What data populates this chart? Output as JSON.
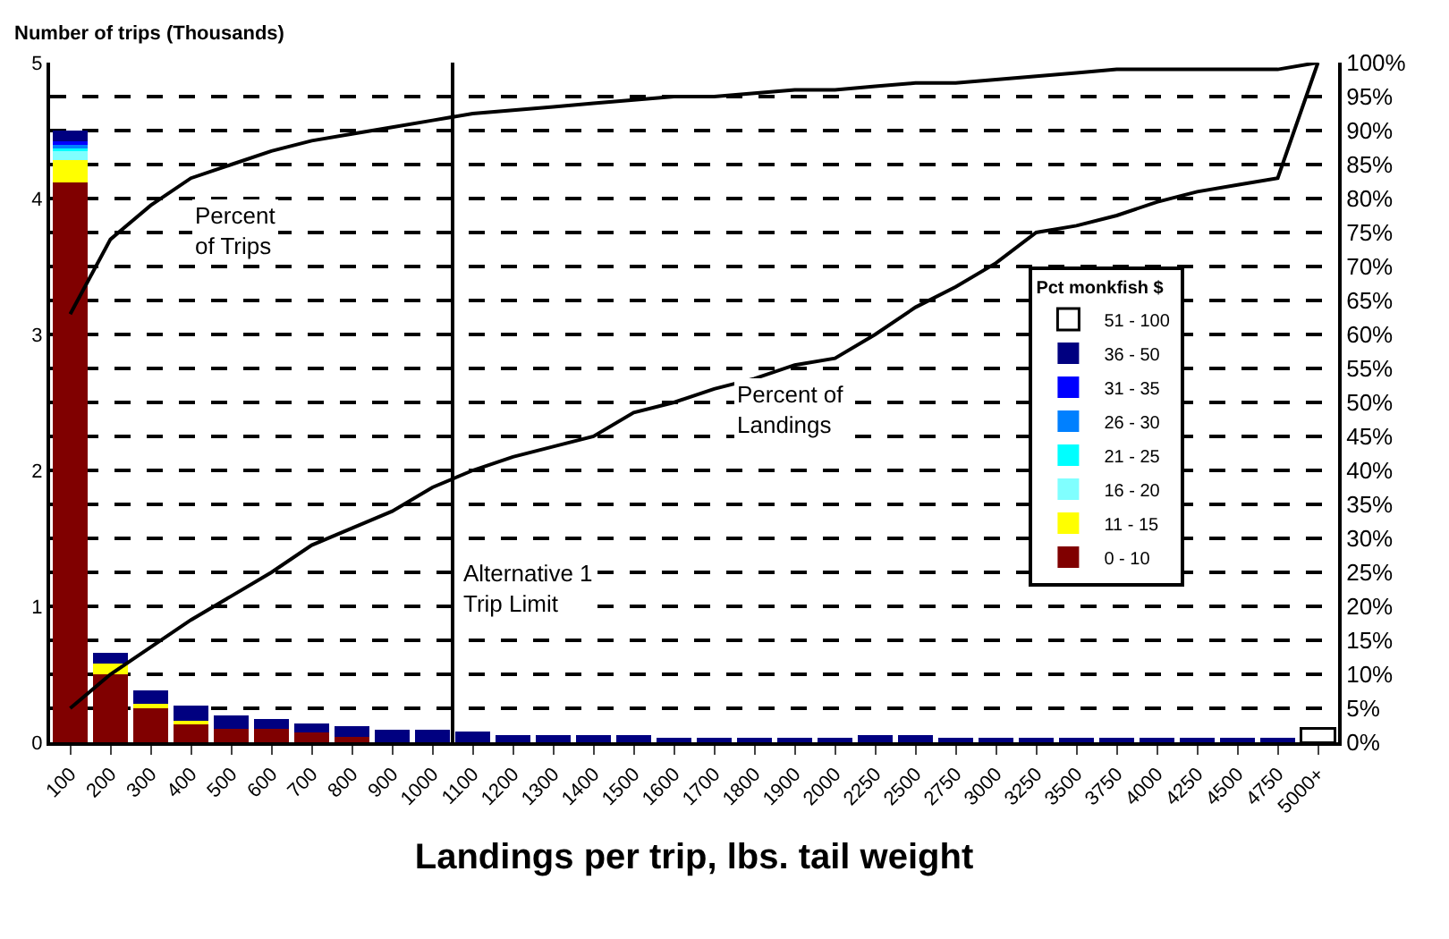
{
  "chart_data": {
    "type": "bar",
    "stacked": true,
    "ylabel": "Number of trips (Thousands)",
    "xlabel": "Landings per trip, lbs. tail weight",
    "legend_title": "Pct monkfish $",
    "legend": "right",
    "categories": [
      "100",
      "200",
      "300",
      "400",
      "500",
      "600",
      "700",
      "800",
      "900",
      "1000",
      "1100",
      "1200",
      "1300",
      "1400",
      "1500",
      "1600",
      "1700",
      "1800",
      "1900",
      "2000",
      "2250",
      "2500",
      "2750",
      "3000",
      "3250",
      "3500",
      "3750",
      "4000",
      "4250",
      "4500",
      "4750",
      "5000+"
    ],
    "series": [
      {
        "name": "0 - 10",
        "color": "#800000",
        "values": [
          4.12,
          0.5,
          0.25,
          0.13,
          0.1,
          0.1,
          0.07,
          0.04,
          null,
          null,
          null,
          null,
          null,
          null,
          null,
          null,
          null,
          null,
          null,
          null,
          null,
          null,
          null,
          null,
          null,
          null,
          null,
          null,
          null,
          null,
          null,
          null
        ]
      },
      {
        "name": "11 - 15",
        "color": "#ffff00",
        "values": [
          0.16,
          0.08,
          0.03,
          0.03,
          null,
          null,
          null,
          null,
          null,
          null,
          null,
          null,
          null,
          null,
          null,
          null,
          null,
          null,
          null,
          null,
          null,
          null,
          null,
          null,
          null,
          null,
          null,
          null,
          null,
          null,
          null,
          null
        ]
      },
      {
        "name": "16 - 20",
        "color": "#80ffff",
        "values": [
          0.07,
          null,
          null,
          null,
          null,
          null,
          null,
          null,
          null,
          null,
          null,
          null,
          null,
          null,
          null,
          null,
          null,
          null,
          null,
          null,
          null,
          null,
          null,
          null,
          null,
          null,
          null,
          null,
          null,
          null,
          null,
          null
        ]
      },
      {
        "name": "21 - 25",
        "color": "#00ffff",
        "values": [
          0.03,
          null,
          null,
          null,
          null,
          null,
          null,
          null,
          null,
          null,
          null,
          null,
          null,
          null,
          null,
          null,
          null,
          null,
          null,
          null,
          null,
          null,
          null,
          null,
          null,
          null,
          null,
          null,
          null,
          null,
          null,
          null
        ]
      },
      {
        "name": "26 - 30",
        "color": "#0080ff",
        "values": [
          0.02,
          null,
          null,
          null,
          null,
          null,
          null,
          null,
          null,
          null,
          null,
          null,
          null,
          null,
          null,
          null,
          null,
          null,
          null,
          null,
          null,
          null,
          null,
          null,
          null,
          null,
          null,
          null,
          null,
          null,
          null,
          null
        ]
      },
      {
        "name": "31 - 35",
        "color": "#0000ff",
        "values": [
          0.02,
          null,
          null,
          null,
          null,
          null,
          null,
          null,
          null,
          null,
          null,
          null,
          null,
          null,
          null,
          null,
          null,
          null,
          null,
          null,
          null,
          null,
          null,
          null,
          null,
          null,
          null,
          null,
          null,
          null,
          null,
          null
        ]
      },
      {
        "name": "36 - 50",
        "color": "#000080",
        "values": [
          0.08,
          0.08,
          0.1,
          0.11,
          0.1,
          0.07,
          0.07,
          0.08,
          0.09,
          0.09,
          0.08,
          0.05,
          0.05,
          0.05,
          0.05,
          0.03,
          0.03,
          0.03,
          0.03,
          0.03,
          0.05,
          0.05,
          0.03,
          0.03,
          0.03,
          0.03,
          0.03,
          0.03,
          0.03,
          0.03,
          0.03,
          null
        ]
      },
      {
        "name": "51 - 100",
        "color": "#ffffff",
        "values": [
          null,
          null,
          null,
          null,
          null,
          null,
          null,
          null,
          null,
          null,
          null,
          null,
          null,
          null,
          null,
          null,
          null,
          null,
          null,
          null,
          null,
          null,
          null,
          null,
          null,
          null,
          null,
          null,
          null,
          null,
          null,
          0.1
        ]
      },
      {
        "type": "line",
        "axis": "y2",
        "color": "#000000",
        "values": [
          63,
          74,
          79,
          83,
          85,
          87,
          88.5,
          89.5,
          90.5,
          91.5,
          92.5,
          93,
          93.5,
          94,
          94.5,
          95,
          95,
          95.5,
          96,
          96,
          96.5,
          97,
          97,
          97.5,
          98,
          98.5,
          99,
          99,
          99,
          99,
          99,
          100
        ]
      },
      {
        "type": "line",
        "axis": "y2",
        "color": "#000000",
        "values": [
          5,
          10,
          14,
          18,
          21.5,
          25,
          29,
          31.5,
          34,
          37.5,
          40,
          42,
          43.5,
          45,
          48.5,
          50,
          52,
          53.5,
          55.5,
          56.5,
          60,
          64,
          67,
          70.5,
          75,
          76,
          77.5,
          79.5,
          81,
          82,
          83,
          100
        ]
      }
    ],
    "ylim": [
      0,
      5
    ],
    "yticks": [
      0,
      1,
      2,
      3,
      4,
      5
    ],
    "y2lim": [
      0,
      100
    ],
    "y2ticks": [
      {
        "value": 0,
        "label": "0%"
      },
      {
        "value": 5,
        "label": "5%"
      },
      {
        "value": 10,
        "label": "10%"
      },
      {
        "value": 15,
        "label": "15%"
      },
      {
        "value": 20,
        "label": "20%"
      },
      {
        "value": 25,
        "label": "25%"
      },
      {
        "value": 30,
        "label": "30%"
      },
      {
        "value": 35,
        "label": "35%"
      },
      {
        "value": 40,
        "label": "40%"
      },
      {
        "value": 45,
        "label": "45%"
      },
      {
        "value": 50,
        "label": "50%"
      },
      {
        "value": 55,
        "label": "55%"
      },
      {
        "value": 60,
        "label": "60%"
      },
      {
        "value": 65,
        "label": "65%"
      },
      {
        "value": 70,
        "label": "70%"
      },
      {
        "value": 75,
        "label": "75%"
      },
      {
        "value": 80,
        "label": "80%"
      },
      {
        "value": 85,
        "label": "85%"
      },
      {
        "value": 90,
        "label": "90%"
      },
      {
        "value": 95,
        "label": "95%"
      },
      {
        "value": 100,
        "label": "100%"
      }
    ],
    "grid": "y",
    "marker": "none",
    "line_style": "solid",
    "ref_lines": [
      {
        "axis": "x",
        "value": "1100",
        "label": "Alternative 1\nTrip Limit",
        "color": "#000000"
      }
    ],
    "annotations": [
      "Percent\nof Trips",
      "Percent of\nLandings"
    ]
  }
}
